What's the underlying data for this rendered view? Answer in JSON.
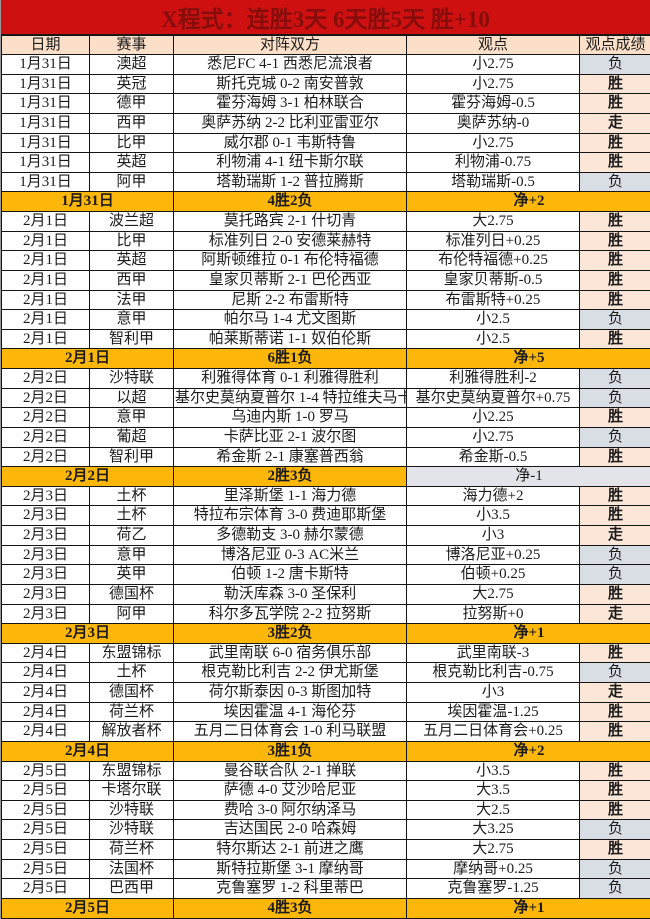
{
  "title": "X程式：连胜3天 6天胜5天 胜+10",
  "columns": [
    "日期",
    "赛事",
    "对阵双方",
    "观点",
    "观点成绩"
  ],
  "colors": {
    "title_bg": "#ce1110",
    "title_text": "#850d0c",
    "header_row_bg": "#fcdfc8",
    "summary_bg": "#fcb70a",
    "summary_text": "#a51c0a",
    "win_bg": "#fbe6d7",
    "win_text": "#e0251a",
    "loss_bg": "#d9dde4"
  },
  "result_legend": {
    "win": "胜",
    "loss": "负",
    "push": "走"
  },
  "groups": [
    {
      "rows": [
        {
          "date": "1月31日",
          "league": "澳超",
          "match": "悉尼FC 4-1 西悉尼流浪者",
          "view": "小2.75",
          "result": "负"
        },
        {
          "date": "1月31日",
          "league": "英冠",
          "match": "斯托克城 0-2 南安普敦",
          "view": "小2.75",
          "result": "胜"
        },
        {
          "date": "1月31日",
          "league": "德甲",
          "match": "霍芬海姆 3-1 柏林联合",
          "view": "霍芬海姆-0.5",
          "result": "胜"
        },
        {
          "date": "1月31日",
          "league": "西甲",
          "match": "奥萨苏纳 2-2 比利亚雷亚尔",
          "view": "奥萨苏纳-0",
          "result": "走"
        },
        {
          "date": "1月31日",
          "league": "比甲",
          "match": "威尔郡 0-1 韦斯特鲁",
          "view": "小2.75",
          "result": "胜"
        },
        {
          "date": "1月31日",
          "league": "英超",
          "match": "利物浦 4-1 纽卡斯尔联",
          "view": "利物浦-0.75",
          "result": "胜"
        },
        {
          "date": "1月31日",
          "league": "阿甲",
          "match": "塔勒瑞斯 1-2 普拉腾斯",
          "view": "塔勒瑞斯-0.5",
          "result": "负"
        }
      ],
      "summary": {
        "date": "1月31日",
        "record": "4胜2负",
        "net": "净+2",
        "net_plain": false
      }
    },
    {
      "rows": [
        {
          "date": "2月1日",
          "league": "波兰超",
          "match": "莫托路宾 2-1 什切青",
          "view": "大2.75",
          "result": "胜"
        },
        {
          "date": "2月1日",
          "league": "比甲",
          "match": "标准列日 2-0 安德莱赫特",
          "view": "标准列日+0.25",
          "result": "胜"
        },
        {
          "date": "2月1日",
          "league": "英超",
          "match": "阿斯顿维拉 0-1 布伦特福德",
          "view": "布伦特福德+0.25",
          "result": "胜"
        },
        {
          "date": "2月1日",
          "league": "西甲",
          "match": "皇家贝蒂斯 2-1 巴伦西亚",
          "view": "皇家贝蒂斯-0.5",
          "result": "胜"
        },
        {
          "date": "2月1日",
          "league": "法甲",
          "match": "尼斯 2-2 布雷斯特",
          "view": "布雷斯特+0.25",
          "result": "胜"
        },
        {
          "date": "2月1日",
          "league": "意甲",
          "match": "帕尔马 1-4 尤文图斯",
          "view": "小2.5",
          "result": "负"
        },
        {
          "date": "2月1日",
          "league": "智利甲",
          "match": "帕莱斯蒂诺 1-1 奴伯伦斯",
          "view": "小2.5",
          "result": "胜"
        }
      ],
      "summary": {
        "date": "2月1日",
        "record": "6胜1负",
        "net": "净+5",
        "net_plain": false
      }
    },
    {
      "rows": [
        {
          "date": "2月2日",
          "league": "沙特联",
          "match": "利雅得体育 0-1 利雅得胜利",
          "view": "利雅得胜利-2",
          "result": "负"
        },
        {
          "date": "2月2日",
          "league": "以超",
          "match": "基尔史莫纳夏普尔 1-4 特拉维夫马卡比",
          "view": "基尔史莫纳夏普尔+0.75",
          "result": "负"
        },
        {
          "date": "2月2日",
          "league": "意甲",
          "match": "乌迪内斯 1-0 罗马",
          "view": "小2.25",
          "result": "胜"
        },
        {
          "date": "2月2日",
          "league": "葡超",
          "match": "卡萨比亚 2-1 波尔图",
          "view": "小2.75",
          "result": "负"
        },
        {
          "date": "2月2日",
          "league": "智利甲",
          "match": "希金斯 2-1 康塞普西翁",
          "view": "希金斯-0.5",
          "result": "胜"
        }
      ],
      "summary": {
        "date": "2月2日",
        "record": "2胜3负",
        "net": "净-1",
        "net_plain": true
      }
    },
    {
      "rows": [
        {
          "date": "2月3日",
          "league": "土杯",
          "match": "里泽斯堡 1-1 海力德",
          "view": "海力德+2",
          "result": "胜"
        },
        {
          "date": "2月3日",
          "league": "土杯",
          "match": "特拉布宗体育 3-0 费迪耶斯堡",
          "view": "小3.5",
          "result": "胜"
        },
        {
          "date": "2月3日",
          "league": "荷乙",
          "match": "多德勒支 3-0 赫尔蒙德",
          "view": "小3",
          "result": "走"
        },
        {
          "date": "2月3日",
          "league": "意甲",
          "match": "博洛尼亚 0-3 AC米兰",
          "view": "博洛尼亚+0.25",
          "result": "负"
        },
        {
          "date": "2月3日",
          "league": "英甲",
          "match": "伯顿 1-2 唐卡斯特",
          "view": "伯顿+0.25",
          "result": "负"
        },
        {
          "date": "2月3日",
          "league": "德国杯",
          "match": "勒沃库森 3-0 圣保利",
          "view": "大2.75",
          "result": "胜"
        },
        {
          "date": "2月3日",
          "league": "阿甲",
          "match": "科尔多瓦学院 2-2 拉努斯",
          "view": "拉努斯+0",
          "result": "走"
        }
      ],
      "summary": {
        "date": "2月3日",
        "record": "3胜2负",
        "net": "净+1",
        "net_plain": false
      }
    },
    {
      "rows": [
        {
          "date": "2月4日",
          "league": "东盟锦标",
          "match": "武里南联 6-0 宿务俱乐部",
          "view": "武里南联-3",
          "result": "胜"
        },
        {
          "date": "2月4日",
          "league": "土杯",
          "match": "根克勒比利吉 2-2 伊尤斯堡",
          "view": "根克勒比利吉-0.75",
          "result": "负"
        },
        {
          "date": "2月4日",
          "league": "德国杯",
          "match": "荷尔斯泰因 0-3 斯图加特",
          "view": "小3",
          "result": "走"
        },
        {
          "date": "2月4日",
          "league": "荷兰杯",
          "match": "埃因霍温 4-1 海伦芬",
          "view": "埃因霍温-1.25",
          "result": "胜"
        },
        {
          "date": "2月4日",
          "league": "解放者杯",
          "match": "五月二日体育会 1-0 利马联盟",
          "view": "五月二日体育会+0.25",
          "result": "胜"
        }
      ],
      "summary": {
        "date": "2月4日",
        "record": "3胜1负",
        "net": "净+2",
        "net_plain": false
      }
    },
    {
      "rows": [
        {
          "date": "2月5日",
          "league": "东盟锦标",
          "match": "曼谷联合队 2-1 掸联",
          "view": "小3.5",
          "result": "胜"
        },
        {
          "date": "2月5日",
          "league": "卡塔尔联",
          "match": "萨德 4-0 艾沙哈尼亚",
          "view": "大3.5",
          "result": "胜"
        },
        {
          "date": "2月5日",
          "league": "沙特联",
          "match": "费哈 3-0 阿尔纳泽马",
          "view": "大2.5",
          "result": "胜"
        },
        {
          "date": "2月5日",
          "league": "沙特联",
          "match": "吉达国民 2-0 哈森姆",
          "view": "大3.25",
          "result": "负"
        },
        {
          "date": "2月5日",
          "league": "荷兰杯",
          "match": "特尔斯达 2-1 前进之鹰",
          "view": "大2.75",
          "result": "胜"
        },
        {
          "date": "2月5日",
          "league": "法国杯",
          "match": "斯特拉斯堡 3-1 摩纳哥",
          "view": "摩纳哥+0.25",
          "result": "负"
        },
        {
          "date": "2月5日",
          "league": "巴西甲",
          "match": "克鲁塞罗 1-2 科里蒂巴",
          "view": "克鲁塞罗-1.25",
          "result": "负"
        }
      ],
      "summary": {
        "date": "2月5日",
        "record": "4胜3负",
        "net": "净+1",
        "net_plain": false
      }
    }
  ]
}
